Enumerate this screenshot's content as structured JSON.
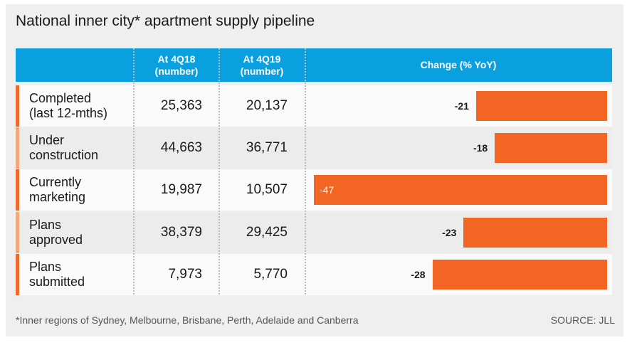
{
  "title": "National inner city* apartment supply pipeline",
  "headers": {
    "col1": "At 4Q18",
    "col1_sub": "(number)",
    "col2": "At 4Q19",
    "col2_sub": "(number)",
    "col3": "Change (% YoY)"
  },
  "colors": {
    "header": "#0aa0e0",
    "bar": "#f26522",
    "accent_dark": "#ee6a2c",
    "accent_light": "#f4a77a"
  },
  "chart_data": {
    "type": "table",
    "title": "National inner city* apartment supply pipeline",
    "columns": [
      "At 4Q18 (number)",
      "At 4Q19 (number)",
      "Change (% YoY)"
    ],
    "rows": [
      {
        "label1": "Completed",
        "label2": "(last 12-mths)",
        "q418": "25,363",
        "q419": "20,137",
        "change": -21
      },
      {
        "label1": "Under",
        "label2": "construction",
        "q418": "44,663",
        "q419": "36,771",
        "change": -18
      },
      {
        "label1": "Currently",
        "label2": "marketing",
        "q418": "19,987",
        "q419": "10,507",
        "change": -47
      },
      {
        "label1": "Plans",
        "label2": "approved",
        "q418": "38,379",
        "q419": "29,425",
        "change": -23
      },
      {
        "label1": "Plans",
        "label2": "submitted",
        "q418": "7,973",
        "q419": "5,770",
        "change": -28
      }
    ],
    "bar_range": [
      -47,
      0
    ]
  },
  "footnote": "*Inner regions of Sydney, Melbourne, Brisbane, Perth, Adelaide and Canberra",
  "source": "SOURCE: JLL"
}
